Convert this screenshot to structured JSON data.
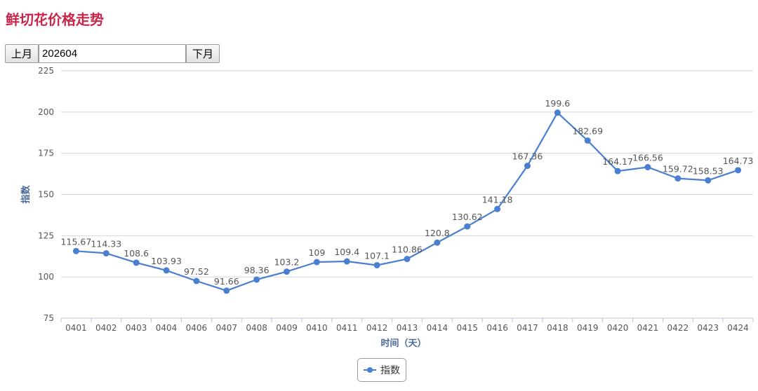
{
  "page_title": "鲜切花价格走势",
  "controls": {
    "prev_label": "上月",
    "month_value": "202604",
    "next_label": "下月"
  },
  "colors": {
    "title": "#c8264a",
    "series": "#4a7fd0",
    "axis_label": "#4a6a9a"
  },
  "chart_data": {
    "type": "line",
    "title": "",
    "xlabel": "时间（天）",
    "ylabel": "指数",
    "ylim": [
      75,
      225
    ],
    "yticks": [
      75,
      100,
      125,
      150,
      175,
      200,
      225
    ],
    "grid": true,
    "legend": "bottom-center",
    "categories": [
      "0401",
      "0402",
      "0403",
      "0404",
      "0406",
      "0407",
      "0408",
      "0409",
      "0410",
      "0411",
      "0412",
      "0413",
      "0414",
      "0415",
      "0416",
      "0417",
      "0418",
      "0419",
      "0420",
      "0421",
      "0422",
      "0423",
      "0424"
    ],
    "series": [
      {
        "name": "指数",
        "values": [
          115.67,
          114.33,
          108.6,
          103.93,
          97.52,
          91.66,
          98.36,
          103.2,
          109,
          109.4,
          107.1,
          110.86,
          120.8,
          130.62,
          141.18,
          167.36,
          199.6,
          182.69,
          164.17,
          166.56,
          159.72,
          158.53,
          164.73
        ],
        "labels": [
          "115.67",
          "114.33",
          "108.6",
          "103.93",
          "97.52",
          "91.66",
          "98.36",
          "103.2",
          "109",
          "109.4",
          "107.1",
          "110.86",
          "120.8",
          "130.62",
          "141.18",
          "167.36",
          "199.6",
          "182.69",
          "164.17",
          "166.56",
          "159.72",
          "158.53",
          "164.73"
        ]
      }
    ]
  }
}
